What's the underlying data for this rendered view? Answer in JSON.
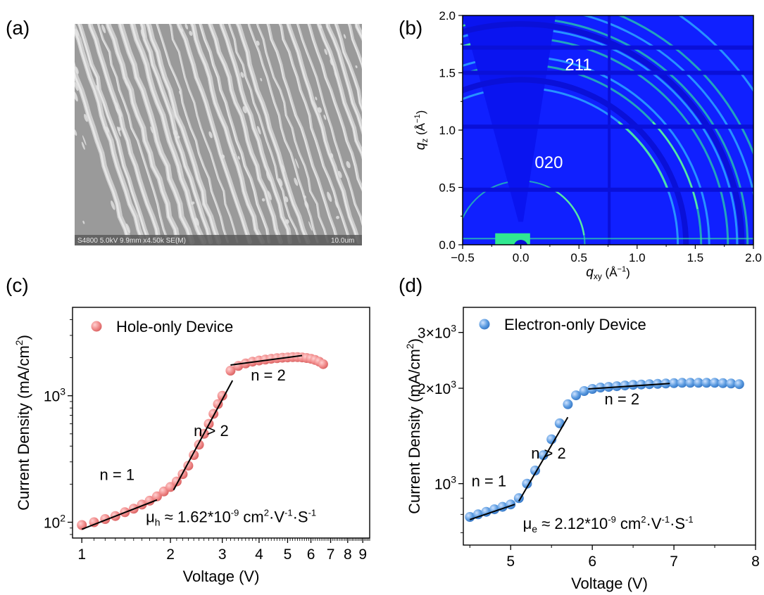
{
  "panel_labels": {
    "a": "(a)",
    "b": "(b)",
    "c": "(c)",
    "d": "(d)"
  },
  "sem": {
    "caption_left": "S4800 5.0kV 9.9mm x4.50k SE(M)",
    "caption_right": "10.0um"
  },
  "colors": {
    "hole_marker": "#f08a8a",
    "electron_marker": "#5b9be0",
    "giwaxs_bg": "#1020ff",
    "giwaxs_ring": "#30e890"
  },
  "chart_data": [
    {
      "id": "b",
      "type": "heatmap",
      "xlim": [
        -0.5,
        2.0
      ],
      "ylim": [
        0.0,
        2.0
      ],
      "xticks": [
        "−0.5",
        "0.0",
        "0.5",
        "1.0",
        "1.5",
        "2.0"
      ],
      "yticks": [
        "0.0",
        "0.5",
        "1.0",
        "1.5",
        "2.0"
      ],
      "xlabel": "q",
      "xlabel_sub": "xy",
      "xlabel_unit": " (Å",
      "xlabel_sup": "−1",
      "xlabel_close": ")",
      "ylabel": "q",
      "ylabel_sub": "z",
      "ylabel_unit": " (Å",
      "ylabel_sup": "−1",
      "ylabel_close": ")",
      "annotations": [
        {
          "text": "211",
          "x": 0.38,
          "y": 1.52
        },
        {
          "text": "020",
          "x": 0.12,
          "y": 0.67
        }
      ],
      "rings_q": [
        0.55,
        1.35,
        1.55,
        1.62,
        1.78,
        1.86,
        1.95,
        2.05,
        2.15,
        2.4
      ]
    },
    {
      "id": "c",
      "type": "scatter",
      "xscale": "log",
      "yscale": "log",
      "xlim": [
        0.93,
        9.5
      ],
      "ylim": [
        75,
        5000
      ],
      "xticks": [
        {
          "v": 1,
          "label": "1"
        },
        {
          "v": 2,
          "label": "2"
        },
        {
          "v": 3,
          "label": "3"
        },
        {
          "v": 4,
          "label": "4"
        },
        {
          "v": 5,
          "label": "5"
        },
        {
          "v": 6,
          "label": "6"
        },
        {
          "v": 7,
          "label": "7"
        },
        {
          "v": 8,
          "label": "8"
        },
        {
          "v": 9,
          "label": "9"
        }
      ],
      "yticks": [
        {
          "v": 100,
          "base": "10",
          "exp": "2"
        },
        {
          "v": 1000,
          "base": "10",
          "exp": "3"
        }
      ],
      "xlabel": "Voltage (V)",
      "ylabel": "Current Density (mA/cm",
      "ylabel_sup": "2",
      "ylabel_close": ")",
      "series": [
        {
          "name": "Hole-only Device",
          "x": [
            1.0,
            1.1,
            1.2,
            1.3,
            1.4,
            1.5,
            1.6,
            1.7,
            1.8,
            1.9,
            2.0,
            2.1,
            2.2,
            2.3,
            2.4,
            2.5,
            2.6,
            2.7,
            2.8,
            2.9,
            3.0,
            3.2,
            3.4,
            3.6,
            3.8,
            4.0,
            4.2,
            4.4,
            4.6,
            4.8,
            5.0,
            5.2,
            5.4,
            5.6,
            5.8,
            6.0,
            6.2,
            6.4,
            6.6
          ],
          "y": [
            95,
            100,
            106,
            112,
            120,
            128,
            138,
            148,
            160,
            175,
            190,
            210,
            240,
            280,
            340,
            410,
            500,
            600,
            720,
            860,
            1000,
            1580,
            1720,
            1800,
            1860,
            1900,
            1930,
            1960,
            1980,
            2000,
            2010,
            2020,
            2020,
            2010,
            1990,
            1960,
            1920,
            1860,
            1780
          ]
        }
      ],
      "fit_lines": [
        {
          "x": [
            1.0,
            1.8
          ],
          "y": [
            88,
            150
          ]
        },
        {
          "x": [
            2.05,
            3.25
          ],
          "y": [
            180,
            1320
          ]
        },
        {
          "x": [
            3.2,
            5.6
          ],
          "y": [
            1750,
            2080
          ]
        }
      ],
      "annotations": [
        {
          "text": "n = 1",
          "x": 1.15,
          "y": 215
        },
        {
          "text": "n > 2",
          "x": 2.4,
          "y": 480
        },
        {
          "text": "n = 2",
          "x": 3.75,
          "y": 1320
        },
        {
          "text": "μ",
          "sub": "h",
          "rest": " ≈ 1.62*10",
          "exp": "-9",
          "unit1": " cm",
          "exp2": "2",
          "unit2": "·V",
          "exp3": "-1",
          "unit3": "·S",
          "exp4": "-1",
          "x": 1.65,
          "y": 100
        }
      ],
      "legend": "top-left"
    },
    {
      "id": "d",
      "type": "scatter",
      "xscale": "linear",
      "yscale": "log",
      "xlim": [
        4.42,
        8.0
      ],
      "ylim": [
        640,
        3600
      ],
      "xticks": [
        {
          "v": 5,
          "label": "5"
        },
        {
          "v": 6,
          "label": "6"
        },
        {
          "v": 7,
          "label": "7"
        },
        {
          "v": 8,
          "label": "8"
        }
      ],
      "yticks": [
        {
          "v": 1000,
          "base": "10",
          "exp": "3"
        },
        {
          "v": 2000,
          "base": "2×10",
          "exp": "3"
        },
        {
          "v": 3000,
          "base": "3×10",
          "exp": "3"
        }
      ],
      "xlabel": "Voltage (V)",
      "ylabel": "Current Density (mA/cm",
      "ylabel_sup": "2",
      "ylabel_close": ")",
      "series": [
        {
          "name": "Electron-only Device",
          "x": [
            4.5,
            4.6,
            4.7,
            4.8,
            4.9,
            5.0,
            5.1,
            5.2,
            5.3,
            5.4,
            5.5,
            5.6,
            5.7,
            5.8,
            5.9,
            6.0,
            6.1,
            6.2,
            6.3,
            6.4,
            6.5,
            6.6,
            6.7,
            6.8,
            6.9,
            7.0,
            7.1,
            7.2,
            7.3,
            7.4,
            7.5,
            7.6,
            7.7,
            7.8
          ],
          "y": [
            785,
            800,
            815,
            830,
            845,
            860,
            900,
            1000,
            1100,
            1230,
            1380,
            1550,
            1780,
            1900,
            1960,
            1990,
            2010,
            2020,
            2030,
            2040,
            2050,
            2055,
            2060,
            2065,
            2070,
            2075,
            2080,
            2080,
            2080,
            2080,
            2080,
            2075,
            2070,
            2060
          ]
        }
      ],
      "fit_lines": [
        {
          "x": [
            4.5,
            5.05
          ],
          "y": [
            770,
            860
          ]
        },
        {
          "x": [
            5.1,
            5.7
          ],
          "y": [
            880,
            1620
          ]
        },
        {
          "x": [
            5.95,
            6.95
          ],
          "y": [
            1990,
            2070
          ]
        }
      ],
      "annotations": [
        {
          "text": "n = 1",
          "x": 4.52,
          "y": 980
        },
        {
          "text": "n > 2",
          "x": 5.25,
          "y": 1200
        },
        {
          "text": "n = 2",
          "x": 6.15,
          "y": 1780
        },
        {
          "text": "μ",
          "sub": "e",
          "rest": " ≈ 2.12*10",
          "exp": "-9",
          "unit1": " cm",
          "exp2": "2",
          "unit2": "·V",
          "exp3": "-1",
          "unit3": "·S",
          "exp4": "-1",
          "x": 5.15,
          "y": 720
        }
      ],
      "legend": "top-left"
    }
  ]
}
